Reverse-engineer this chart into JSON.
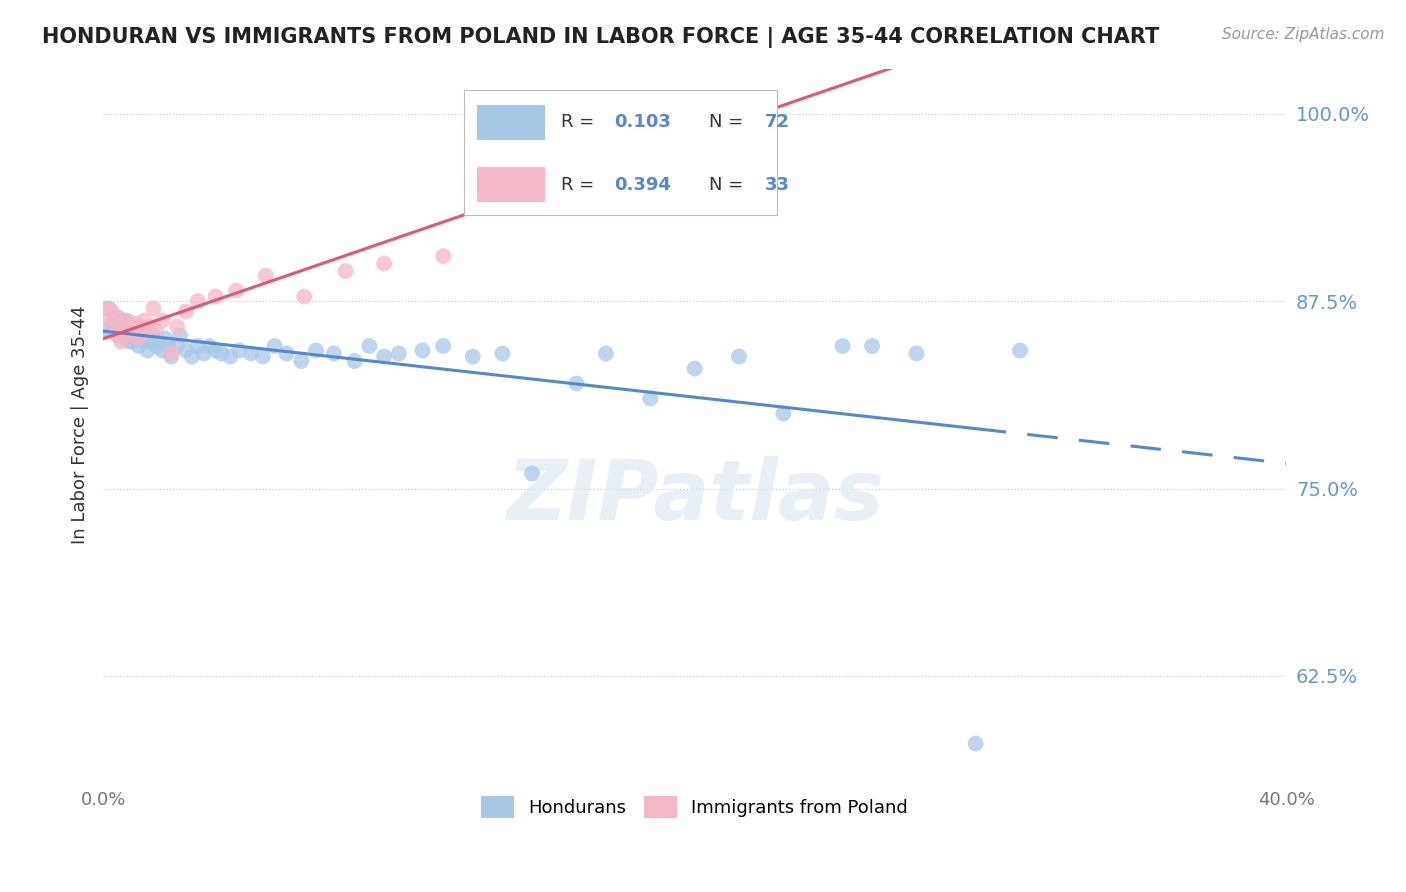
{
  "title": "HONDURAN VS IMMIGRANTS FROM POLAND IN LABOR FORCE | AGE 35-44 CORRELATION CHART",
  "source_text": "Source: ZipAtlas.com",
  "ylabel": "In Labor Force | Age 35-44",
  "xlim": [
    0.0,
    0.4
  ],
  "ylim": [
    0.555,
    1.03
  ],
  "yticks": [
    0.625,
    0.75,
    0.875,
    1.0
  ],
  "ytick_labels": [
    "62.5%",
    "75.0%",
    "87.5%",
    "100.0%"
  ],
  "xticks": [
    0.0,
    0.05,
    0.1,
    0.15,
    0.2,
    0.25,
    0.3,
    0.35,
    0.4
  ],
  "xtick_labels": [
    "0.0%",
    "",
    "",
    "",
    "",
    "",
    "",
    "",
    "40.0%"
  ],
  "legend_r_blue": "0.103",
  "legend_n_blue": "72",
  "legend_r_pink": "0.394",
  "legend_n_pink": "33",
  "blue_color": "#a8c8e8",
  "pink_color": "#f5b8c8",
  "line_blue": "#5588cc",
  "line_pink": "#e05878",
  "grid_color": "#cccccc",
  "tick_color": "#6699cc",
  "watermark": "ZIPatlas",
  "hondurans_x": [
    0.001,
    0.002,
    0.003,
    0.003,
    0.004,
    0.004,
    0.005,
    0.005,
    0.005,
    0.006,
    0.006,
    0.007,
    0.007,
    0.008,
    0.008,
    0.009,
    0.009,
    0.01,
    0.01,
    0.011,
    0.012,
    0.012,
    0.013,
    0.014,
    0.015,
    0.015,
    0.016,
    0.017,
    0.018,
    0.019,
    0.02,
    0.021,
    0.022,
    0.023,
    0.025,
    0.026,
    0.028,
    0.03,
    0.032,
    0.034,
    0.036,
    0.038,
    0.04,
    0.043,
    0.046,
    0.05,
    0.054,
    0.058,
    0.062,
    0.067,
    0.072,
    0.078,
    0.085,
    0.09,
    0.095,
    0.1,
    0.108,
    0.115,
    0.125,
    0.135,
    0.145,
    0.16,
    0.17,
    0.185,
    0.2,
    0.215,
    0.23,
    0.25,
    0.26,
    0.275,
    0.295,
    0.31
  ],
  "hondurans_y": [
    0.855,
    0.87,
    0.855,
    0.86,
    0.855,
    0.862,
    0.858,
    0.864,
    0.852,
    0.855,
    0.86,
    0.85,
    0.858,
    0.852,
    0.862,
    0.856,
    0.848,
    0.855,
    0.848,
    0.85,
    0.858,
    0.845,
    0.852,
    0.848,
    0.855,
    0.842,
    0.848,
    0.852,
    0.845,
    0.848,
    0.842,
    0.85,
    0.845,
    0.838,
    0.845,
    0.852,
    0.842,
    0.838,
    0.845,
    0.84,
    0.845,
    0.842,
    0.84,
    0.838,
    0.842,
    0.84,
    0.838,
    0.845,
    0.84,
    0.835,
    0.842,
    0.84,
    0.835,
    0.845,
    0.838,
    0.84,
    0.842,
    0.845,
    0.838,
    0.84,
    0.76,
    0.82,
    0.84,
    0.81,
    0.83,
    0.838,
    0.8,
    0.845,
    0.845,
    0.84,
    0.58,
    0.842
  ],
  "poland_x": [
    0.001,
    0.002,
    0.003,
    0.004,
    0.005,
    0.006,
    0.006,
    0.007,
    0.007,
    0.008,
    0.009,
    0.01,
    0.011,
    0.012,
    0.013,
    0.014,
    0.016,
    0.017,
    0.018,
    0.02,
    0.023,
    0.025,
    0.028,
    0.032,
    0.038,
    0.045,
    0.055,
    0.068,
    0.082,
    0.095,
    0.115,
    0.14,
    0.19
  ],
  "poland_y": [
    0.87,
    0.862,
    0.868,
    0.858,
    0.852,
    0.86,
    0.848,
    0.855,
    0.862,
    0.852,
    0.858,
    0.855,
    0.86,
    0.85,
    0.858,
    0.862,
    0.858,
    0.87,
    0.855,
    0.862,
    0.84,
    0.858,
    0.868,
    0.875,
    0.878,
    0.882,
    0.892,
    0.878,
    0.895,
    0.9,
    0.905,
    0.96,
    1.0
  ]
}
